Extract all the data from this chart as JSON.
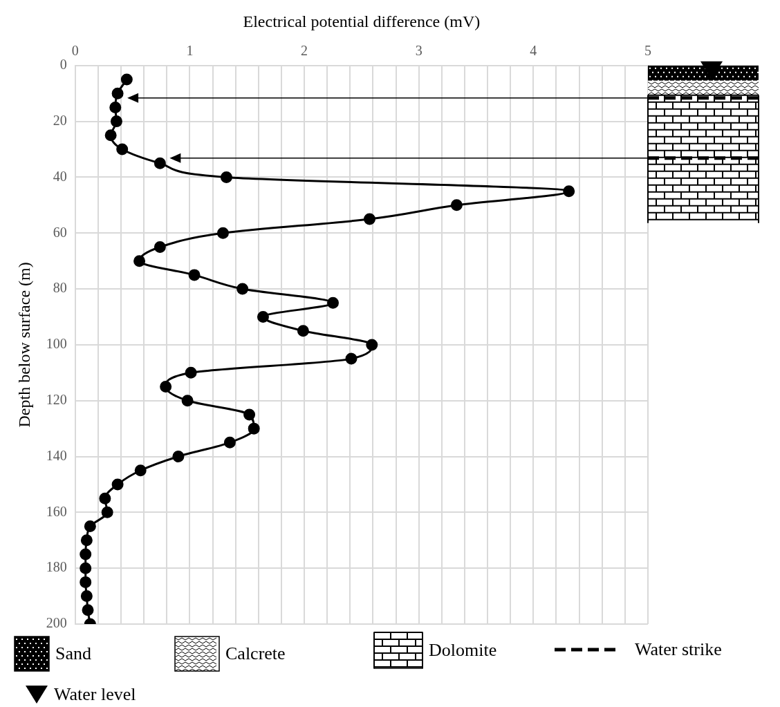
{
  "chart_data": {
    "type": "line",
    "xlabel": "Electrical potential difference (mV)",
    "ylabel": "Depth below surface (m)",
    "xlim": [
      0,
      5
    ],
    "ylim": [
      200,
      0
    ],
    "xticks": [
      0,
      {
        "value": 0.2,
        "label": null
      },
      {
        "value": 0.4,
        "label": null
      },
      {
        "value": 0.6,
        "label": null
      },
      {
        "value": 0.8,
        "label": null
      },
      1,
      {
        "value": 1.2,
        "label": null
      },
      {
        "value": 1.4,
        "label": null
      },
      {
        "value": 1.6,
        "label": null
      },
      {
        "value": 1.8,
        "label": null
      },
      2,
      {
        "value": 2.2,
        "label": null
      },
      {
        "value": 2.4,
        "label": null
      },
      {
        "value": 2.6,
        "label": null
      },
      {
        "value": 2.8,
        "label": null
      },
      3,
      {
        "value": 3.2,
        "label": null
      },
      {
        "value": 3.4,
        "label": null
      },
      {
        "value": 3.6,
        "label": null
      },
      {
        "value": 3.8,
        "label": null
      },
      4,
      {
        "value": 4.2,
        "label": null
      },
      {
        "value": 4.4,
        "label": null
      },
      {
        "value": 4.6,
        "label": null
      },
      {
        "value": 4.8,
        "label": null
      },
      5
    ],
    "yticks": [
      0,
      20,
      40,
      60,
      80,
      100,
      120,
      140,
      160,
      180,
      200
    ],
    "grid": true,
    "marker": "circle",
    "line_style": "solid",
    "series": [
      {
        "color": "#000000",
        "x": [
          0.45,
          0.37,
          0.35,
          0.36,
          0.31,
          0.41,
          0.74,
          1.32,
          4.31,
          3.33,
          2.57,
          1.29,
          0.74,
          0.56,
          1.04,
          1.46,
          2.25,
          1.64,
          1.99,
          2.59,
          2.41,
          1.01,
          0.79,
          0.98,
          1.52,
          1.56,
          1.35,
          0.9,
          0.57,
          0.37,
          0.26,
          0.28,
          0.13,
          0.1,
          0.09,
          0.09,
          0.09,
          0.1,
          0.11,
          0.13
        ],
        "values": [
          5,
          10,
          15,
          20,
          25,
          30,
          35,
          40,
          45,
          50,
          55,
          60,
          65,
          70,
          75,
          80,
          85,
          90,
          95,
          100,
          105,
          110,
          115,
          120,
          125,
          130,
          135,
          140,
          145,
          150,
          155,
          160,
          165,
          170,
          175,
          180,
          185,
          190,
          195,
          200
        ]
      }
    ],
    "annotations": [
      "Sand",
      "Calcrete",
      "Dolomite",
      "Water strike",
      "Water level"
    ]
  }
}
